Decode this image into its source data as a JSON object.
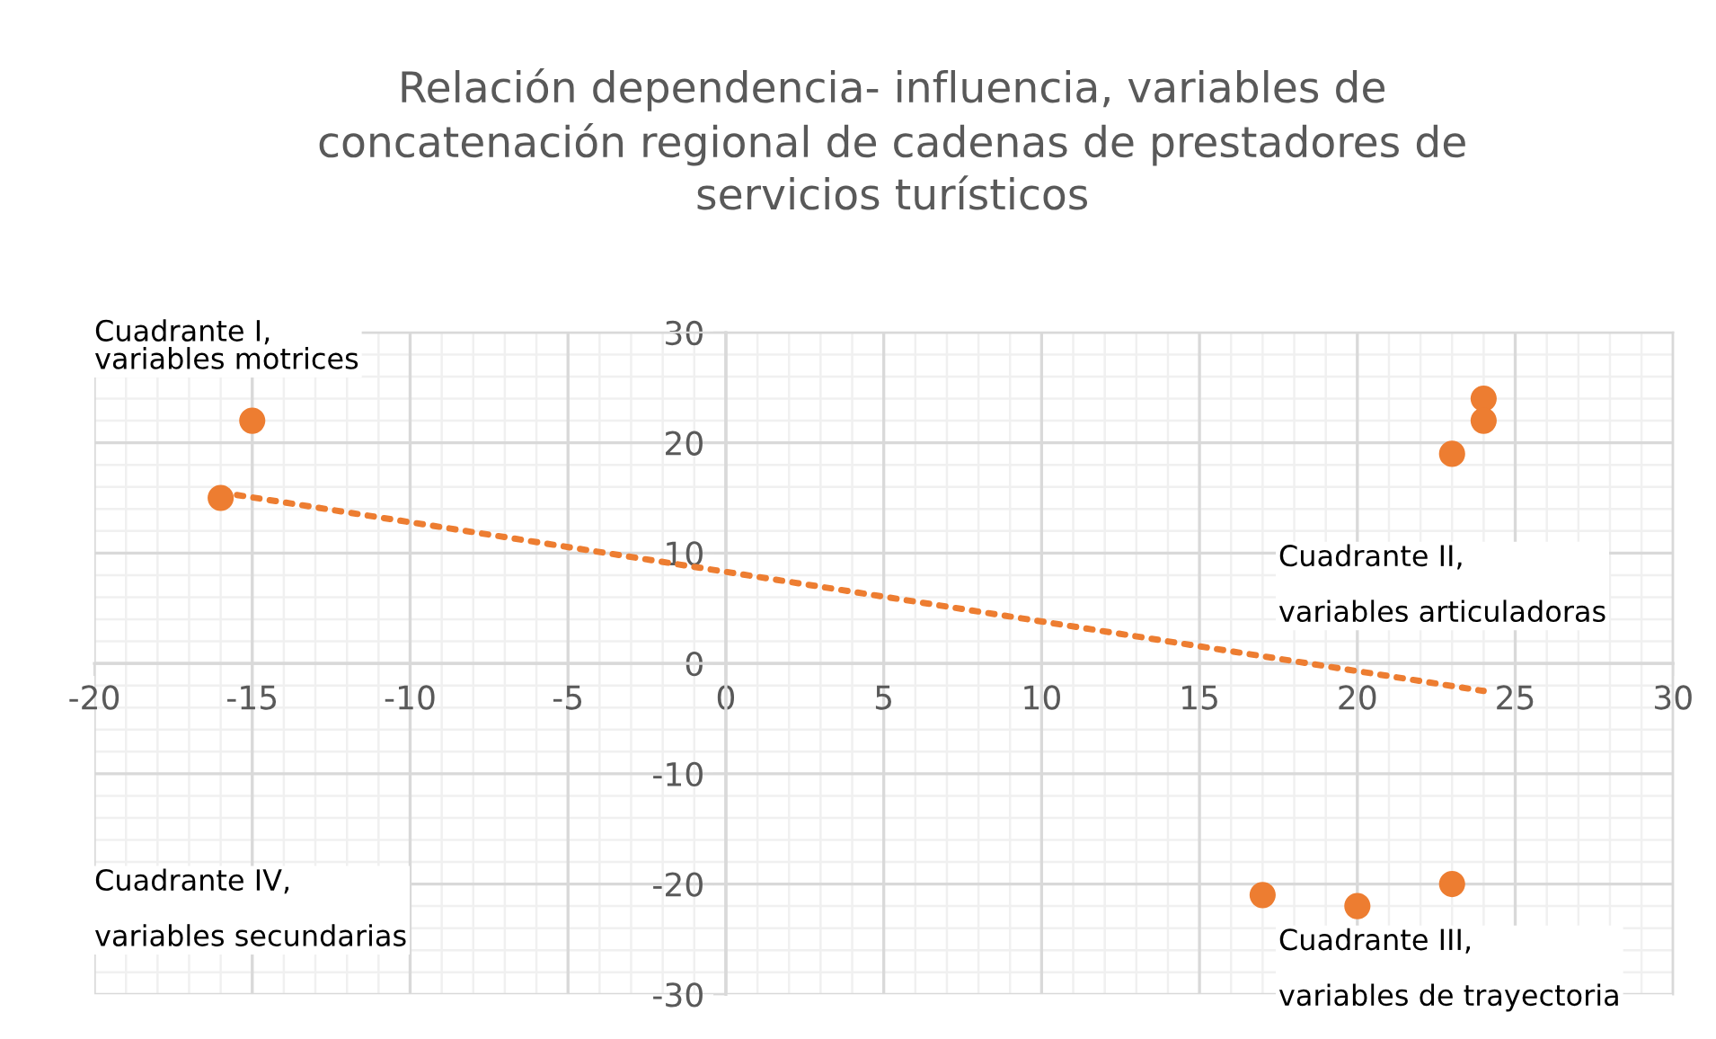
{
  "chart_data": {
    "type": "scatter",
    "title": "Relación dependencia- influencia, variables de\nconcatenación regional de cadenas de prestadores de\nservicios turísticos",
    "series": [
      {
        "color": "#ed7d31",
        "x": [
          -15,
          -16,
          24,
          24,
          23,
          17,
          20,
          23
        ],
        "values": [
          22,
          15,
          24,
          22,
          19,
          -21,
          -22,
          -20
        ],
        "marker": "circle"
      },
      {
        "type": "line",
        "color": "#ed7d31",
        "x": [
          -16,
          24
        ],
        "values": [
          15.5,
          -2.5
        ],
        "line_style": "dotted",
        "marker": "none"
      }
    ],
    "xlim": [
      -20,
      30
    ],
    "xticks": [
      -20,
      -15,
      -10,
      -5,
      0,
      5,
      10,
      15,
      20,
      25,
      30
    ],
    "ylim": [
      -30,
      30
    ],
    "yticks": [
      -30,
      -20,
      -10,
      0,
      10,
      20,
      30
    ],
    "grid": true,
    "legend": false,
    "annotations": [
      "Cuadrante I,\nvariables motrices",
      "Cuadrante II,\n\nvariables articuladoras",
      "Cuadrante III,\n\nvariables de trayectoria",
      "Cuadrante IV,\n\nvariables secundarias"
    ]
  }
}
